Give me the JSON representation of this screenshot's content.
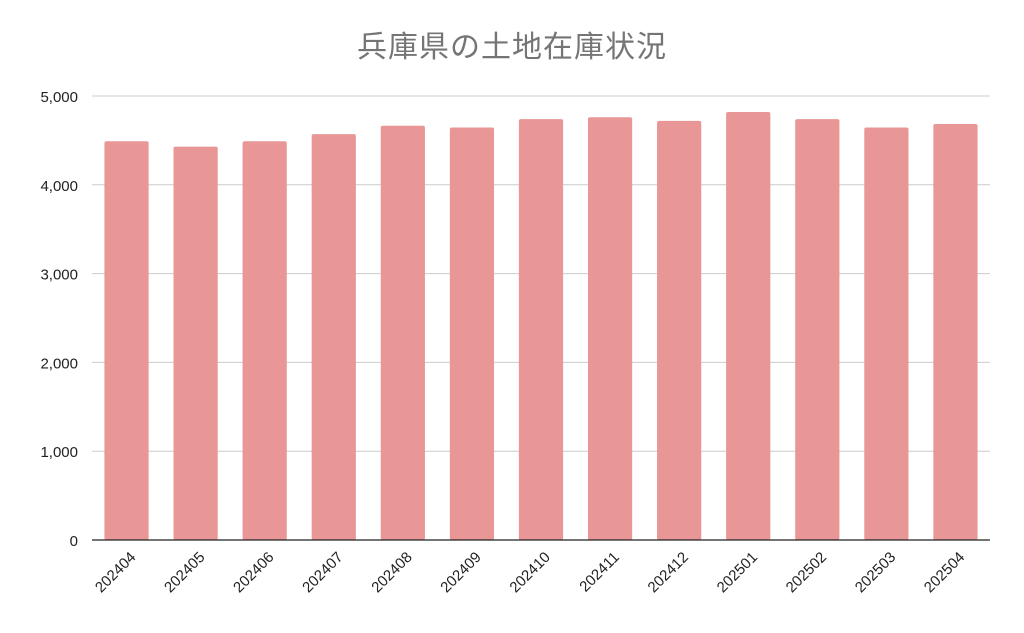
{
  "chart_data": {
    "type": "bar",
    "title": "兵庫県の土地在庫状況",
    "xlabel": "",
    "ylabel": "",
    "categories": [
      "202404",
      "202405",
      "202406",
      "202407",
      "202408",
      "202409",
      "202410",
      "202411",
      "202412",
      "202501",
      "202502",
      "202503",
      "202504"
    ],
    "values": [
      4490,
      4430,
      4490,
      4570,
      4665,
      4645,
      4740,
      4760,
      4720,
      4820,
      4740,
      4645,
      4685
    ],
    "ylim": [
      0,
      5000
    ],
    "yticks": [
      "0",
      "1,000",
      "2,000",
      "3,000",
      "4,000",
      "5,000"
    ],
    "grid": true,
    "legend": "none",
    "bar_color": "#e89696"
  }
}
